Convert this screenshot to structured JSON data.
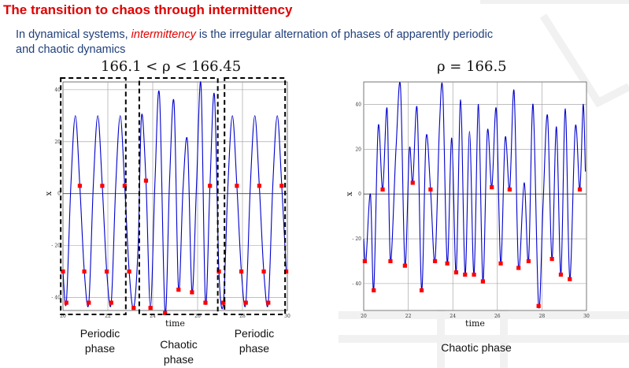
{
  "slide": {
    "title": "The transition to chaos through intermittency",
    "line1_pre": "In dynamical systems, ",
    "line1_em": "intermittency",
    "line1_post": " is the irregular alternation of phases of apparently periodic",
    "line2": "and chaotic dynamics"
  },
  "colors": {
    "title": "#e00000",
    "body": "#1f3f7a",
    "trace": "#0000cc",
    "marker": "#ff0000",
    "box": "#000000"
  },
  "chart_data": [
    {
      "type": "line",
      "title": "166.1 < ρ < 166.45",
      "xlabel": "time",
      "ylabel": "x",
      "xlim": [
        20,
        30
      ],
      "ylim": [
        -45,
        43
      ],
      "xticks": [
        20,
        22,
        24,
        26,
        28,
        30
      ],
      "yticks": [
        40,
        20,
        0,
        -20,
        -40
      ],
      "ytick_labels": [
        "40",
        "20",
        "0",
        "- 20",
        "- 40"
      ],
      "grid": true,
      "phases": [
        {
          "label_lines": [
            "Periodic",
            "phase"
          ],
          "x_range": [
            19.9,
            22.8
          ]
        },
        {
          "label_lines": [
            "Chaotic",
            "phase"
          ],
          "x_range": [
            23.4,
            26.9
          ]
        },
        {
          "label_lines": [
            "Periodic",
            "phase"
          ],
          "x_range": [
            27.2,
            29.9
          ]
        }
      ],
      "series": [
        {
          "points": [
            [
              20.0,
              -30
            ],
            [
              20.15,
              -42
            ],
            [
              20.35,
              3
            ],
            [
              20.55,
              30
            ],
            [
              20.75,
              3
            ],
            [
              20.95,
              -30
            ],
            [
              21.15,
              -42
            ],
            [
              21.35,
              3
            ],
            [
              21.55,
              30
            ],
            [
              21.75,
              3
            ],
            [
              21.95,
              -30
            ],
            [
              22.15,
              -42
            ],
            [
              22.35,
              3
            ],
            [
              22.55,
              30
            ],
            [
              22.75,
              3
            ],
            [
              22.95,
              -30
            ],
            [
              23.15,
              -44
            ],
            [
              23.35,
              -20
            ],
            [
              23.5,
              30
            ],
            [
              23.7,
              5
            ],
            [
              23.9,
              -44
            ],
            [
              24.1,
              5
            ],
            [
              24.3,
              38
            ],
            [
              24.55,
              -46
            ],
            [
              24.75,
              5
            ],
            [
              24.95,
              35
            ],
            [
              25.15,
              -37
            ],
            [
              25.35,
              2
            ],
            [
              25.55,
              20
            ],
            [
              25.75,
              -38
            ],
            [
              25.95,
              3
            ],
            [
              26.15,
              42
            ],
            [
              26.35,
              -42
            ],
            [
              26.55,
              3
            ],
            [
              26.75,
              38
            ],
            [
              26.95,
              -30
            ],
            [
              27.15,
              -42
            ],
            [
              27.35,
              3
            ],
            [
              27.55,
              30
            ],
            [
              27.75,
              3
            ],
            [
              27.95,
              -30
            ],
            [
              28.15,
              -42
            ],
            [
              28.35,
              3
            ],
            [
              28.55,
              30
            ],
            [
              28.75,
              3
            ],
            [
              28.95,
              -30
            ],
            [
              29.15,
              -42
            ],
            [
              29.35,
              3
            ],
            [
              29.55,
              30
            ],
            [
              29.75,
              3
            ],
            [
              29.95,
              -30
            ]
          ],
          "markers": [
            [
              20.0,
              -30
            ],
            [
              20.15,
              -42
            ],
            [
              20.75,
              3
            ],
            [
              20.95,
              -30
            ],
            [
              21.15,
              -42
            ],
            [
              21.75,
              3
            ],
            [
              21.95,
              -30
            ],
            [
              22.15,
              -42
            ],
            [
              22.75,
              3
            ],
            [
              22.95,
              -30
            ],
            [
              23.15,
              -44
            ],
            [
              23.7,
              5
            ],
            [
              23.9,
              -44
            ],
            [
              24.55,
              -46
            ],
            [
              25.15,
              -37
            ],
            [
              25.75,
              -38
            ],
            [
              26.35,
              -42
            ],
            [
              26.55,
              3
            ],
            [
              26.95,
              -30
            ],
            [
              27.15,
              -42
            ],
            [
              27.75,
              3
            ],
            [
              27.95,
              -30
            ],
            [
              28.15,
              -42
            ],
            [
              28.75,
              3
            ],
            [
              28.95,
              -30
            ],
            [
              29.15,
              -42
            ],
            [
              29.75,
              3
            ],
            [
              29.95,
              -30
            ]
          ]
        }
      ]
    },
    {
      "type": "line",
      "title": "ρ = 166.5",
      "xlabel": "time",
      "ylabel": "x",
      "xlim": [
        20,
        30
      ],
      "ylim": [
        -52,
        50
      ],
      "xticks": [
        20,
        22,
        24,
        26,
        28,
        30
      ],
      "yticks": [
        40,
        20,
        0,
        -20,
        -40
      ],
      "ytick_labels": [
        "40",
        "20",
        "0",
        "- 20",
        "- 40"
      ],
      "grid": true,
      "phase_label": "Chaotic phase",
      "series": [
        {
          "points": [
            [
              20.0,
              -20
            ],
            [
              20.1,
              -30
            ],
            [
              20.3,
              0
            ],
            [
              20.45,
              -43
            ],
            [
              20.65,
              30
            ],
            [
              20.85,
              2
            ],
            [
              21.05,
              38
            ],
            [
              21.2,
              -30
            ],
            [
              21.45,
              20
            ],
            [
              21.65,
              48
            ],
            [
              21.85,
              -32
            ],
            [
              22.05,
              20
            ],
            [
              22.2,
              5
            ],
            [
              22.4,
              38
            ],
            [
              22.6,
              -43
            ],
            [
              22.8,
              25
            ],
            [
              23.0,
              2
            ],
            [
              23.2,
              -30
            ],
            [
              23.4,
              30
            ],
            [
              23.55,
              46
            ],
            [
              23.75,
              -31
            ],
            [
              23.95,
              25
            ],
            [
              24.15,
              -35
            ],
            [
              24.35,
              42
            ],
            [
              24.55,
              -36
            ],
            [
              24.75,
              28
            ],
            [
              24.95,
              -36
            ],
            [
              25.15,
              40
            ],
            [
              25.35,
              -39
            ],
            [
              25.55,
              28
            ],
            [
              25.75,
              3
            ],
            [
              25.95,
              38
            ],
            [
              26.15,
              -31
            ],
            [
              26.35,
              25
            ],
            [
              26.55,
              2
            ],
            [
              26.75,
              46
            ],
            [
              26.95,
              -33
            ],
            [
              27.2,
              5
            ],
            [
              27.4,
              -30
            ],
            [
              27.6,
              40
            ],
            [
              27.85,
              -50
            ],
            [
              28.05,
              -5
            ],
            [
              28.25,
              35
            ],
            [
              28.45,
              -29
            ],
            [
              28.65,
              30
            ],
            [
              28.85,
              -36
            ],
            [
              29.05,
              38
            ],
            [
              29.25,
              -38
            ],
            [
              29.5,
              30
            ],
            [
              29.7,
              2
            ],
            [
              29.85,
              40
            ],
            [
              29.95,
              10
            ]
          ],
          "markers": [
            [
              20.05,
              -30
            ],
            [
              20.45,
              -43
            ],
            [
              20.85,
              2
            ],
            [
              21.2,
              -30
            ],
            [
              21.85,
              -32
            ],
            [
              22.2,
              5
            ],
            [
              22.6,
              -43
            ],
            [
              23.0,
              2
            ],
            [
              23.2,
              -30
            ],
            [
              23.75,
              -31
            ],
            [
              24.15,
              -35
            ],
            [
              24.55,
              -36
            ],
            [
              24.95,
              -36
            ],
            [
              25.35,
              -39
            ],
            [
              25.75,
              3
            ],
            [
              26.15,
              -31
            ],
            [
              26.55,
              2
            ],
            [
              26.95,
              -33
            ],
            [
              27.4,
              -30
            ],
            [
              27.85,
              -50
            ],
            [
              28.45,
              -29
            ],
            [
              28.85,
              -36
            ],
            [
              29.25,
              -38
            ],
            [
              29.7,
              2
            ]
          ]
        }
      ]
    }
  ]
}
